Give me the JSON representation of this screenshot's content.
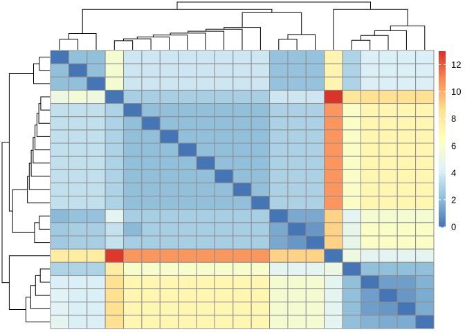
{
  "chart_data": {
    "type": "heatmap",
    "n": 21,
    "row_order": [
      1,
      2,
      3,
      4,
      5,
      6,
      7,
      8,
      9,
      10,
      11,
      12,
      13,
      14,
      15,
      16,
      17,
      18,
      19,
      20,
      21
    ],
    "values": [
      [
        0,
        2.2,
        2.2,
        5.8,
        3.8,
        3.8,
        3.8,
        3.8,
        3.8,
        3.8,
        3.8,
        3.8,
        2.3,
        2.3,
        2.3,
        7.2,
        3.0,
        4.2,
        4.2,
        4.2,
        4.2
      ],
      [
        2.2,
        0,
        2.2,
        5.8,
        3.8,
        3.8,
        3.8,
        3.8,
        3.8,
        3.8,
        3.8,
        3.8,
        2.3,
        2.3,
        2.3,
        7.2,
        3.0,
        4.2,
        4.2,
        4.2,
        4.2
      ],
      [
        2.2,
        2.2,
        0,
        5.8,
        3.8,
        3.8,
        3.8,
        3.8,
        3.8,
        3.8,
        3.8,
        3.8,
        2.3,
        2.3,
        2.3,
        7.2,
        3.0,
        4.2,
        4.2,
        4.2,
        4.2
      ],
      [
        5.2,
        5.6,
        5.2,
        0,
        2.8,
        2.8,
        2.8,
        2.8,
        2.8,
        2.8,
        2.8,
        2.8,
        3.8,
        3.8,
        3.8,
        12.9,
        8.2,
        8.6,
        8.6,
        8.6,
        8.6
      ],
      [
        3.5,
        3.5,
        3.5,
        3.0,
        0,
        2.2,
        2.2,
        2.2,
        2.2,
        2.2,
        2.2,
        2.2,
        2.9,
        2.9,
        2.9,
        10.6,
        6.2,
        7.1,
        7.1,
        7.1,
        7.1
      ],
      [
        3.5,
        3.5,
        3.5,
        3.0,
        2.2,
        0,
        2.2,
        2.2,
        2.2,
        2.2,
        2.2,
        2.2,
        2.9,
        2.9,
        2.9,
        10.6,
        6.2,
        7.1,
        7.1,
        7.1,
        7.1
      ],
      [
        3.5,
        3.5,
        3.5,
        3.0,
        2.2,
        2.2,
        0,
        2.2,
        2.2,
        2.2,
        2.2,
        2.2,
        2.9,
        2.9,
        2.9,
        10.6,
        6.2,
        7.1,
        7.1,
        7.1,
        7.1
      ],
      [
        3.5,
        3.5,
        3.5,
        3.0,
        2.2,
        2.2,
        2.2,
        0,
        2.2,
        2.2,
        2.2,
        2.2,
        2.9,
        2.9,
        2.9,
        10.6,
        6.2,
        7.1,
        7.1,
        7.1,
        7.1
      ],
      [
        3.5,
        3.5,
        3.5,
        3.0,
        2.2,
        2.2,
        2.2,
        2.2,
        0,
        2.2,
        2.2,
        2.2,
        2.9,
        2.9,
        2.9,
        10.6,
        6.2,
        7.1,
        7.1,
        7.1,
        7.1
      ],
      [
        3.5,
        3.5,
        3.5,
        3.0,
        2.2,
        2.2,
        2.2,
        2.2,
        2.2,
        0,
        2.2,
        2.2,
        2.9,
        2.9,
        2.9,
        10.6,
        6.2,
        7.1,
        7.1,
        7.1,
        7.1
      ],
      [
        3.5,
        3.5,
        3.5,
        3.0,
        2.2,
        2.2,
        2.2,
        2.2,
        2.2,
        2.2,
        0,
        2.2,
        2.9,
        2.9,
        2.9,
        10.6,
        6.2,
        7.1,
        7.1,
        7.1,
        7.1
      ],
      [
        3.5,
        3.5,
        3.5,
        3.0,
        2.2,
        2.2,
        2.2,
        2.2,
        2.2,
        2.2,
        2.2,
        0,
        2.9,
        2.9,
        2.9,
        10.6,
        6.2,
        7.1,
        7.1,
        7.1,
        7.1
      ],
      [
        2.0,
        2.3,
        2.3,
        4.6,
        2.8,
        2.8,
        2.8,
        2.8,
        2.8,
        2.8,
        2.8,
        2.8,
        0,
        1.5,
        1.5,
        9.0,
        4.6,
        5.8,
        5.8,
        5.8,
        5.8
      ],
      [
        2.6,
        2.8,
        2.8,
        3.6,
        2.0,
        2.8,
        2.8,
        2.8,
        2.8,
        2.8,
        2.8,
        2.8,
        1.5,
        0,
        1.0,
        9.0,
        4.9,
        6.2,
        6.2,
        6.2,
        6.2
      ],
      [
        2.6,
        2.8,
        2.8,
        3.6,
        2.8,
        2.8,
        2.8,
        2.8,
        2.8,
        2.8,
        2.8,
        2.8,
        1.5,
        1.0,
        0,
        9.0,
        4.9,
        6.2,
        6.2,
        6.2,
        6.2
      ],
      [
        7.8,
        7.8,
        7.8,
        12.8,
        10.6,
        10.6,
        10.6,
        10.6,
        10.6,
        10.6,
        10.6,
        10.6,
        9.0,
        9.0,
        9.0,
        0,
        5.2,
        4.6,
        4.6,
        4.6,
        4.6
      ],
      [
        3.0,
        3.0,
        3.0,
        7.8,
        6.0,
        6.0,
        6.0,
        6.0,
        6.0,
        6.0,
        6.0,
        6.0,
        4.6,
        4.6,
        4.6,
        5.2,
        0,
        2.2,
        2.2,
        2.2,
        2.2
      ],
      [
        4.2,
        4.2,
        4.2,
        8.6,
        7.1,
        7.1,
        7.1,
        7.1,
        7.1,
        7.1,
        7.1,
        7.1,
        5.8,
        5.8,
        5.8,
        4.6,
        2.2,
        0,
        1.2,
        1.2,
        1.8
      ],
      [
        4.4,
        4.2,
        4.2,
        8.6,
        7.1,
        7.1,
        7.1,
        7.1,
        7.1,
        7.1,
        7.1,
        7.1,
        5.8,
        5.8,
        5.8,
        4.6,
        2.2,
        1.2,
        0,
        1.0,
        1.6
      ],
      [
        4.4,
        4.2,
        4.2,
        8.6,
        7.1,
        7.1,
        7.1,
        7.1,
        7.1,
        7.1,
        7.1,
        7.1,
        5.8,
        5.8,
        5.8,
        4.6,
        2.2,
        1.2,
        1.0,
        0,
        1.6
      ],
      [
        4.6,
        4.2,
        4.2,
        8.6,
        7.1,
        7.1,
        7.1,
        7.1,
        7.1,
        7.1,
        7.1,
        7.1,
        5.8,
        5.8,
        5.8,
        4.6,
        2.2,
        1.8,
        1.6,
        1.6,
        0
      ]
    ],
    "colorbar": {
      "range": [
        0,
        13
      ],
      "ticks": [
        0,
        2,
        4,
        6,
        8,
        10,
        12
      ],
      "tick_labels": [
        "0",
        "2",
        "4",
        "6",
        "8",
        "10",
        "12"
      ],
      "colors": [
        "#4575B4",
        "#91BFDB",
        "#E0F3F8",
        "#FFFFBF",
        "#FEE090",
        "#FC8D59",
        "#D73027"
      ]
    },
    "cell_border_color": "#8C8C8C",
    "dendrogram": "both",
    "clusters": [
      [
        0,
        1,
        2
      ],
      [
        3,
        4,
        5,
        6,
        7,
        8,
        9,
        10,
        11
      ],
      [
        12,
        13,
        14
      ],
      [
        15
      ],
      [
        16,
        17,
        18,
        19,
        20
      ]
    ]
  }
}
